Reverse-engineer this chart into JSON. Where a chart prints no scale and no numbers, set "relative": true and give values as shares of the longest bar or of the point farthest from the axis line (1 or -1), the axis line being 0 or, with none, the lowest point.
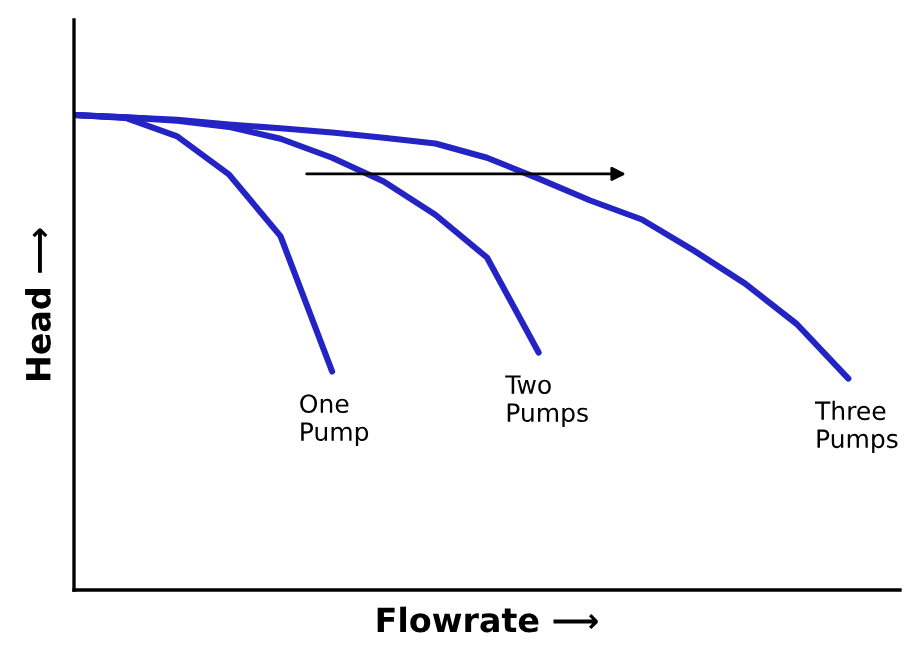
{
  "chart_data": {
    "type": "line",
    "xlabel": "Flowrate ⟶",
    "ylabel": "Head ⟶",
    "relative": true,
    "tick_labels": false,
    "marker": "none",
    "line_style": "solid",
    "categories": [
      null,
      null,
      null,
      null,
      null,
      null,
      null,
      null,
      null,
      null,
      null,
      null,
      null,
      null,
      null,
      null,
      null
    ],
    "series": [
      {
        "name": "One\nPump",
        "color": "#2424c4",
        "values": [
          1,
          0.994,
          0.955,
          0.875,
          0.745,
          0.46,
          null,
          null,
          null,
          null,
          null,
          null,
          null,
          null,
          null,
          null,
          null
        ]
      },
      {
        "name": "Two\nPumps",
        "color": "#2424c4",
        "values": [
          1,
          0.995,
          0.988,
          0.975,
          0.95,
          0.91,
          0.86,
          0.79,
          0.7,
          0.5,
          null,
          null,
          null,
          null,
          null,
          null,
          null
        ]
      },
      {
        "name": "Three\nPumps",
        "color": "#2424c4",
        "values": [
          1,
          0.995,
          0.99,
          0.98,
          0.972,
          0.963,
          0.952,
          0.94,
          0.91,
          0.866,
          0.82,
          0.78,
          0.715,
          0.645,
          0.56,
          0.445,
          null
        ]
      }
    ]
  }
}
